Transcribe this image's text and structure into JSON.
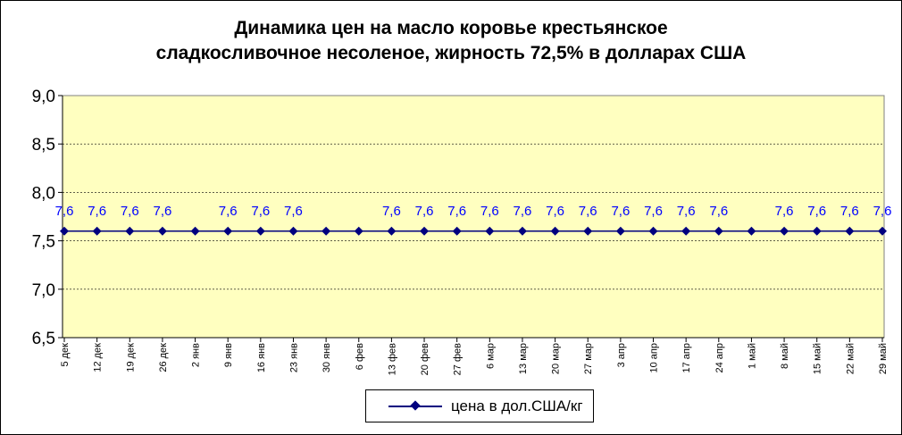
{
  "chart_data": {
    "type": "line",
    "title_lines": [
      "Динамика цен на масло коровье крестьянское",
      "сладкосливочное несоленое, жирность  72,5%  в долларах США"
    ],
    "categories": [
      "5 дек",
      "12 дек",
      "19 дек",
      "26 дек",
      "2 янв",
      "9 янв",
      "16 янв",
      "23 янв",
      "30 янв",
      "6 фев",
      "13 фев",
      "20 фев",
      "27 фев",
      "6 мар",
      "13 мар",
      "20 мар",
      "27 мар",
      "3 апр",
      "10 апр",
      "17 апр",
      "24 апр",
      "1 май",
      "8 май",
      "15 май",
      "22 май",
      "29 май"
    ],
    "series": [
      {
        "name": "цена в дол.США/кг",
        "values": [
          7.6,
          7.6,
          7.6,
          7.6,
          7.6,
          7.6,
          7.6,
          7.6,
          7.6,
          7.6,
          7.6,
          7.6,
          7.6,
          7.6,
          7.6,
          7.6,
          7.6,
          7.6,
          7.6,
          7.6,
          7.6,
          7.6,
          7.6,
          7.6,
          7.6,
          7.6
        ],
        "data_labels": [
          "7,6",
          "7,6",
          "7,6",
          "7,6",
          "",
          "7,6",
          "7,6",
          "7,6",
          "",
          "",
          "7,6",
          "7,6",
          "7,6",
          "7,6",
          "7,6",
          "7,6",
          "7,6",
          "7,6",
          "7,6",
          "7,6",
          "7,6",
          "",
          "7,6",
          "7,6",
          "7,6",
          "7,6"
        ],
        "color": "#00007f"
      }
    ],
    "ylim": [
      6.5,
      9.0
    ],
    "yticks": [
      6.5,
      7.0,
      7.5,
      8.0,
      8.5,
      9.0
    ],
    "ytick_labels": [
      "6,5",
      "7,0",
      "7,5",
      "8,0",
      "8,5",
      "9,0"
    ],
    "grid": true,
    "legend_position": "bottom-center",
    "plot_background": "#ffffc0",
    "label_color": "#0000ff"
  }
}
